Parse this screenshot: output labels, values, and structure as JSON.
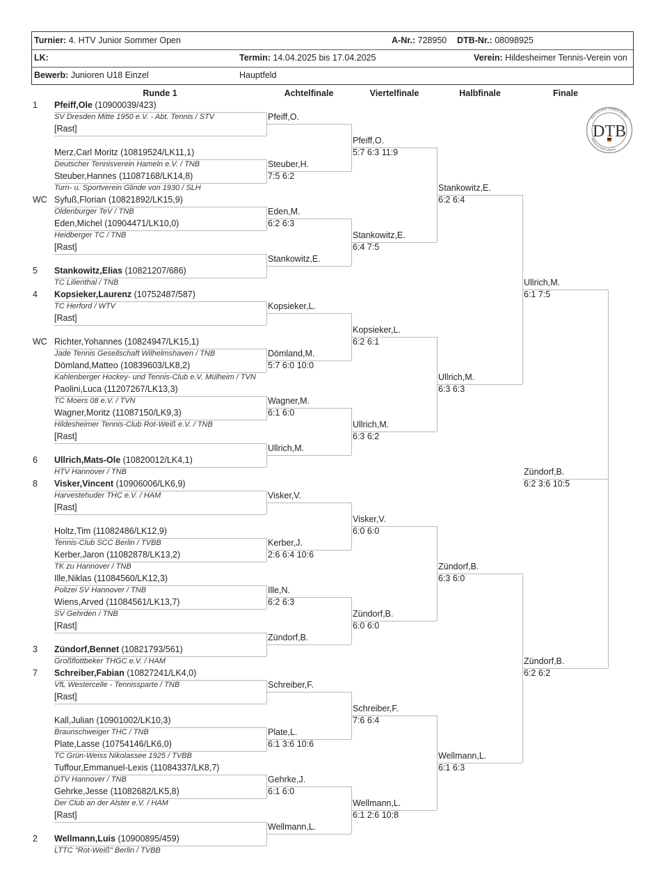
{
  "header": {
    "turnier_label": "Turnier:",
    "turnier": "4. HTV Junior Sommer Open",
    "anr_label": "A-Nr.:",
    "anr": "728950",
    "dtbnr_label": "DTB-Nr.:",
    "dtbnr": "08098925",
    "lk_label": "LK:",
    "termin_label": "Termin:",
    "termin": "14.04.2025 bis 17.04.2025",
    "verein_label": "Verein:",
    "verein": "Hildesheimer Tennis-Verein von",
    "bewerb_label": "Bewerb:",
    "bewerb": "Junioren U18 Einzel",
    "feld": "Hauptfeld"
  },
  "logo": {
    "text": "DTB",
    "ring_top": "DEUTSCHER TENNIS BUND",
    "ring_bottom": "RANGLISTENTURNIER"
  },
  "rounds": [
    "Runde 1",
    "Achtelfinale",
    "Viertelfinale",
    "Halbfinale",
    "Finale"
  ],
  "players": [
    {
      "seed": "1",
      "seeded": true,
      "name": "Pfeiff,Ole",
      "id": "(10900039/423)",
      "club": "SV Dresden Mitte 1950 e.V. - Abt. Tennis / STV"
    },
    {
      "seed": "",
      "name": "[Rast]",
      "id": "",
      "club": ""
    },
    {
      "seed": "",
      "name": "Merz,Carl Moritz",
      "id": "(10819524/LK11,1)",
      "club": "Deutscher Tennisverein Hameln e.V. / TNB"
    },
    {
      "seed": "",
      "name": "Steuber,Hannes",
      "id": "(11087168/LK14,8)",
      "club": "Turn- u. Sportverein Glinde von 1930 / SLH"
    },
    {
      "seed": "WC",
      "name": "Syfuß,Florian",
      "id": "(10821892/LK15,9)",
      "club": "Oldenburger TeV / TNB"
    },
    {
      "seed": "",
      "name": "Eden,Michel",
      "id": "(10904471/LK10,0)",
      "club": "Heidberger TC / TNB"
    },
    {
      "seed": "",
      "name": "[Rast]",
      "id": "",
      "club": ""
    },
    {
      "seed": "5",
      "seeded": true,
      "name": "Stankowitz,Elias",
      "id": "(10821207/686)",
      "club": "TC Lilienthal / TNB"
    },
    {
      "seed": "4",
      "seeded": true,
      "name": "Kopsieker,Laurenz",
      "id": "(10752487/587)",
      "club": "TC Herford / WTV"
    },
    {
      "seed": "",
      "name": "[Rast]",
      "id": "",
      "club": ""
    },
    {
      "seed": "WC",
      "name": "Richter,Yohannes",
      "id": "(10824947/LK15,1)",
      "club": "Jade Tennis Gesellschaft Wilhelmshaven / TNB"
    },
    {
      "seed": "",
      "name": "Dömland,Matteo",
      "id": "(10839603/LK8,2)",
      "club": "Kahlenberger Hockey- und Tennis-Club e.V. Mülheim / TVN"
    },
    {
      "seed": "",
      "name": "Paolini,Luca",
      "id": "(11207267/LK13,3)",
      "club": "TC Moers 08 e.V. / TVN"
    },
    {
      "seed": "",
      "name": "Wagner,Moritz",
      "id": "(11087150/LK9,3)",
      "club": "Hildesheimer Tennis-Club Rot-Weiß e.V. / TNB"
    },
    {
      "seed": "",
      "name": "[Rast]",
      "id": "",
      "club": ""
    },
    {
      "seed": "6",
      "seeded": true,
      "name": "Ullrich,Mats-Ole",
      "id": "(10820012/LK4,1)",
      "club": "HTV Hannover / TNB"
    },
    {
      "seed": "8",
      "seeded": true,
      "name": "Visker,Vincent",
      "id": "(10906006/LK6,9)",
      "club": "Harvestehuder THC e.V. / HAM"
    },
    {
      "seed": "",
      "name": "[Rast]",
      "id": "",
      "club": ""
    },
    {
      "seed": "",
      "name": "Holtz,Tim",
      "id": "(11082486/LK12,9)",
      "club": "Tennis-Club SCC Berlin / TVBB"
    },
    {
      "seed": "",
      "name": "Kerber,Jaron",
      "id": "(11082878/LK13,2)",
      "club": "TK zu Hannover / TNB"
    },
    {
      "seed": "",
      "name": "Ille,Niklas",
      "id": "(11084560/LK12,3)",
      "club": "Polizei SV Hannover / TNB"
    },
    {
      "seed": "",
      "name": "Wiens,Arved",
      "id": "(11084561/LK13,7)",
      "club": "SV Gehrden / TNB"
    },
    {
      "seed": "",
      "name": "[Rast]",
      "id": "",
      "club": ""
    },
    {
      "seed": "3",
      "seeded": true,
      "name": "Zündorf,Bennet",
      "id": "(10821793/561)",
      "club": "Großflottbeker THGC e.V. / HAM"
    },
    {
      "seed": "7",
      "seeded": true,
      "name": "Schreiber,Fabian",
      "id": "(10827241/LK4,0)",
      "club": "VfL Westercelle - Tennissparte / TNB"
    },
    {
      "seed": "",
      "name": "[Rast]",
      "id": "",
      "club": ""
    },
    {
      "seed": "",
      "name": "Kall,Julian",
      "id": "(10901002/LK10,3)",
      "club": "Braunschweiger THC / TNB"
    },
    {
      "seed": "",
      "name": "Plate,Lasse",
      "id": "(10754146/LK6,0)",
      "club": "TC Grün-Weiss Nikolassee 1925 / TVBB"
    },
    {
      "seed": "",
      "name": "Tuffour,Emmanuel-Lexis",
      "id": "(11084337/LK8,7)",
      "club": "DTV Hannover / TNB"
    },
    {
      "seed": "",
      "name": "Gehrke,Jesse",
      "id": "(11082682/LK5,8)",
      "club": "Der Club an der Alster e.V. / HAM"
    },
    {
      "seed": "",
      "name": "[Rast]",
      "id": "",
      "club": ""
    },
    {
      "seed": "2",
      "seeded": true,
      "name": "Wellmann,Luis",
      "id": "(10900895/459)",
      "club": "LTTC \"Rot-Weiß\" Berlin / TVBB"
    }
  ],
  "results": [
    [
      {
        "winner": "Pfeiff,O.",
        "score": ""
      },
      {
        "winner": "Steuber,H.",
        "score": "7:5 6:2"
      },
      {
        "winner": "Eden,M.",
        "score": "6:2 6:3"
      },
      {
        "winner": "Stankowitz,E.",
        "score": ""
      },
      {
        "winner": "Kopsieker,L.",
        "score": ""
      },
      {
        "winner": "Dömland,M.",
        "score": "5:7 6:0 10:0"
      },
      {
        "winner": "Wagner,M.",
        "score": "6:1 6:0"
      },
      {
        "winner": "Ullrich,M.",
        "score": ""
      },
      {
        "winner": "Visker,V.",
        "score": ""
      },
      {
        "winner": "Kerber,J.",
        "score": "2:6 6:4 10:6"
      },
      {
        "winner": "Ille,N.",
        "score": "6:2 6:3"
      },
      {
        "winner": "Zündorf,B.",
        "score": ""
      },
      {
        "winner": "Schreiber,F.",
        "score": ""
      },
      {
        "winner": "Plate,L.",
        "score": "6:1 3:6 10:6"
      },
      {
        "winner": "Gehrke,J.",
        "score": "6:1 6:0"
      },
      {
        "winner": "Wellmann,L.",
        "score": ""
      }
    ],
    [
      {
        "winner": "Pfeiff,O.",
        "score": "5:7 6:3 11:9"
      },
      {
        "winner": "Stankowitz,E.",
        "score": "6:4 7:5"
      },
      {
        "winner": "Kopsieker,L.",
        "score": "6:2 6:1"
      },
      {
        "winner": "Ullrich,M.",
        "score": "6:3 6:2"
      },
      {
        "winner": "Visker,V.",
        "score": "6:0 6:0"
      },
      {
        "winner": "Zündorf,B.",
        "score": "6:0 6:0"
      },
      {
        "winner": "Schreiber,F.",
        "score": "7:6 6:4"
      },
      {
        "winner": "Wellmann,L.",
        "score": "6:1 2:6 10:8"
      }
    ],
    [
      {
        "winner": "Stankowitz,E.",
        "score": "6:2 6:4"
      },
      {
        "winner": "Ullrich,M.",
        "score": "6:3 6:3"
      },
      {
        "winner": "Zündorf,B.",
        "score": "6:3 6:0"
      },
      {
        "winner": "Wellmann,L.",
        "score": "6:1 6:3"
      }
    ],
    [
      {
        "winner": "Ullrich,M.",
        "score": "6:1 7:5"
      },
      {
        "winner": "Zündorf,B.",
        "score": "6:2 6:2"
      }
    ],
    [
      {
        "winner": "Zündorf,B.",
        "score": "6:2 3:6 10:5"
      }
    ]
  ]
}
